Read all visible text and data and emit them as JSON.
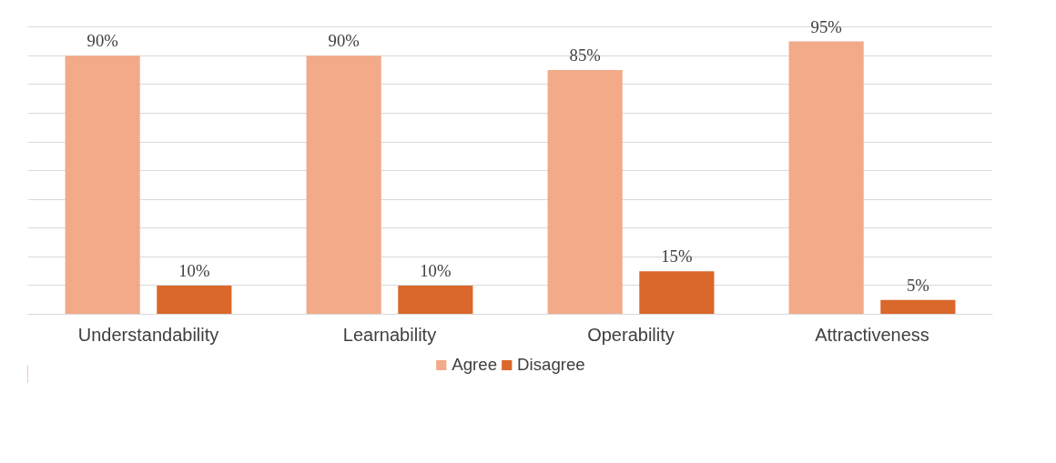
{
  "chart_data": {
    "type": "bar",
    "categories": [
      "Understandability",
      "Learnability",
      "Operability",
      "Attractiveness"
    ],
    "series": [
      {
        "name": "Agree",
        "color": "#f2aa88",
        "values": [
          90,
          90,
          85,
          95
        ],
        "value_labels": [
          "90%",
          "90%",
          "85%",
          "95%"
        ]
      },
      {
        "name": "Disagree",
        "color": "#d9682a",
        "values": [
          10,
          10,
          15,
          5
        ],
        "value_labels": [
          "10%",
          "10%",
          "15%",
          "5%"
        ]
      }
    ],
    "tick_labels": "x",
    "grid": "y",
    "legend": "bottom"
  }
}
